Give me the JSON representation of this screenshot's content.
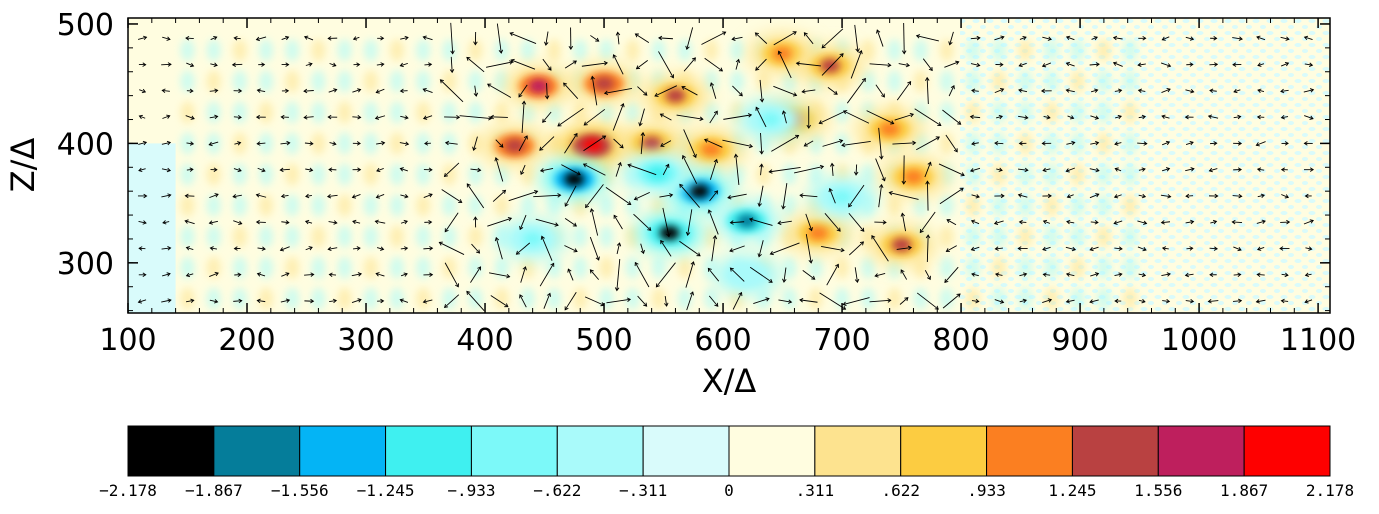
{
  "chart_data": {
    "type": "heatmap",
    "subtype": "filled-contour with vector field",
    "xlabel": "X/Δ",
    "ylabel": "Z/Δ",
    "xlim": [
      100,
      1110
    ],
    "ylim": [
      258,
      505
    ],
    "x_ticks": [
      100,
      200,
      300,
      400,
      500,
      600,
      700,
      800,
      900,
      1000,
      1100
    ],
    "x_tick_labels": [
      "100",
      "200",
      "300",
      "400",
      "500",
      "600",
      "700",
      "800",
      "900",
      "1000",
      "1100"
    ],
    "y_ticks": [
      300,
      400,
      500
    ],
    "y_tick_labels": [
      "300",
      "400",
      "500"
    ],
    "colorbar": {
      "levels": [
        -2.178,
        -1.867,
        -1.556,
        -1.245,
        -0.933,
        -0.622,
        -0.311,
        0,
        0.311,
        0.622,
        0.933,
        1.245,
        1.556,
        1.867,
        2.178
      ],
      "labels": [
        "−2.178",
        "−1.867",
        "−1.556",
        "−1.245",
        "−.933",
        "−.622",
        "−.311",
        "0",
        ".311",
        ".622",
        ".933",
        "1.245",
        "1.556",
        "1.867",
        "2.178"
      ],
      "colors": [
        "#000000",
        "#057d9a",
        "#04b4f5",
        "#3ff0f0",
        "#7cf9f9",
        "#a9fafa",
        "#d9fbfb",
        "#fffde0",
        "#fde38f",
        "#fccc41",
        "#fb7f21",
        "#b94141",
        "#be1f5d",
        "#fe0000"
      ]
    },
    "features": [
      {
        "x": 445,
        "z": 448,
        "value": 1.7
      },
      {
        "x": 500,
        "z": 450,
        "value": 1.5
      },
      {
        "x": 560,
        "z": 440,
        "value": 1.3
      },
      {
        "x": 650,
        "z": 475,
        "value": 1.0
      },
      {
        "x": 690,
        "z": 465,
        "value": 1.4
      },
      {
        "x": 425,
        "z": 398,
        "value": 1.5
      },
      {
        "x": 490,
        "z": 398,
        "value": 2.0
      },
      {
        "x": 540,
        "z": 400,
        "value": 1.4
      },
      {
        "x": 590,
        "z": 395,
        "value": 1.2
      },
      {
        "x": 660,
        "z": 420,
        "value": 1.1
      },
      {
        "x": 740,
        "z": 412,
        "value": 1.0
      },
      {
        "x": 760,
        "z": 372,
        "value": 1.1
      },
      {
        "x": 750,
        "z": 315,
        "value": 1.4
      },
      {
        "x": 680,
        "z": 325,
        "value": 1.0
      },
      {
        "x": 475,
        "z": 370,
        "value": -2.1
      },
      {
        "x": 580,
        "z": 360,
        "value": -2.0
      },
      {
        "x": 555,
        "z": 325,
        "value": -1.9
      },
      {
        "x": 620,
        "z": 335,
        "value": -1.7
      },
      {
        "x": 545,
        "z": 375,
        "value": -1.0
      },
      {
        "x": 640,
        "z": 420,
        "value": -0.9
      },
      {
        "x": 700,
        "z": 355,
        "value": -0.8
      },
      {
        "x": 440,
        "z": 320,
        "value": -0.7
      },
      {
        "x": 620,
        "z": 290,
        "value": -0.6
      }
    ]
  }
}
